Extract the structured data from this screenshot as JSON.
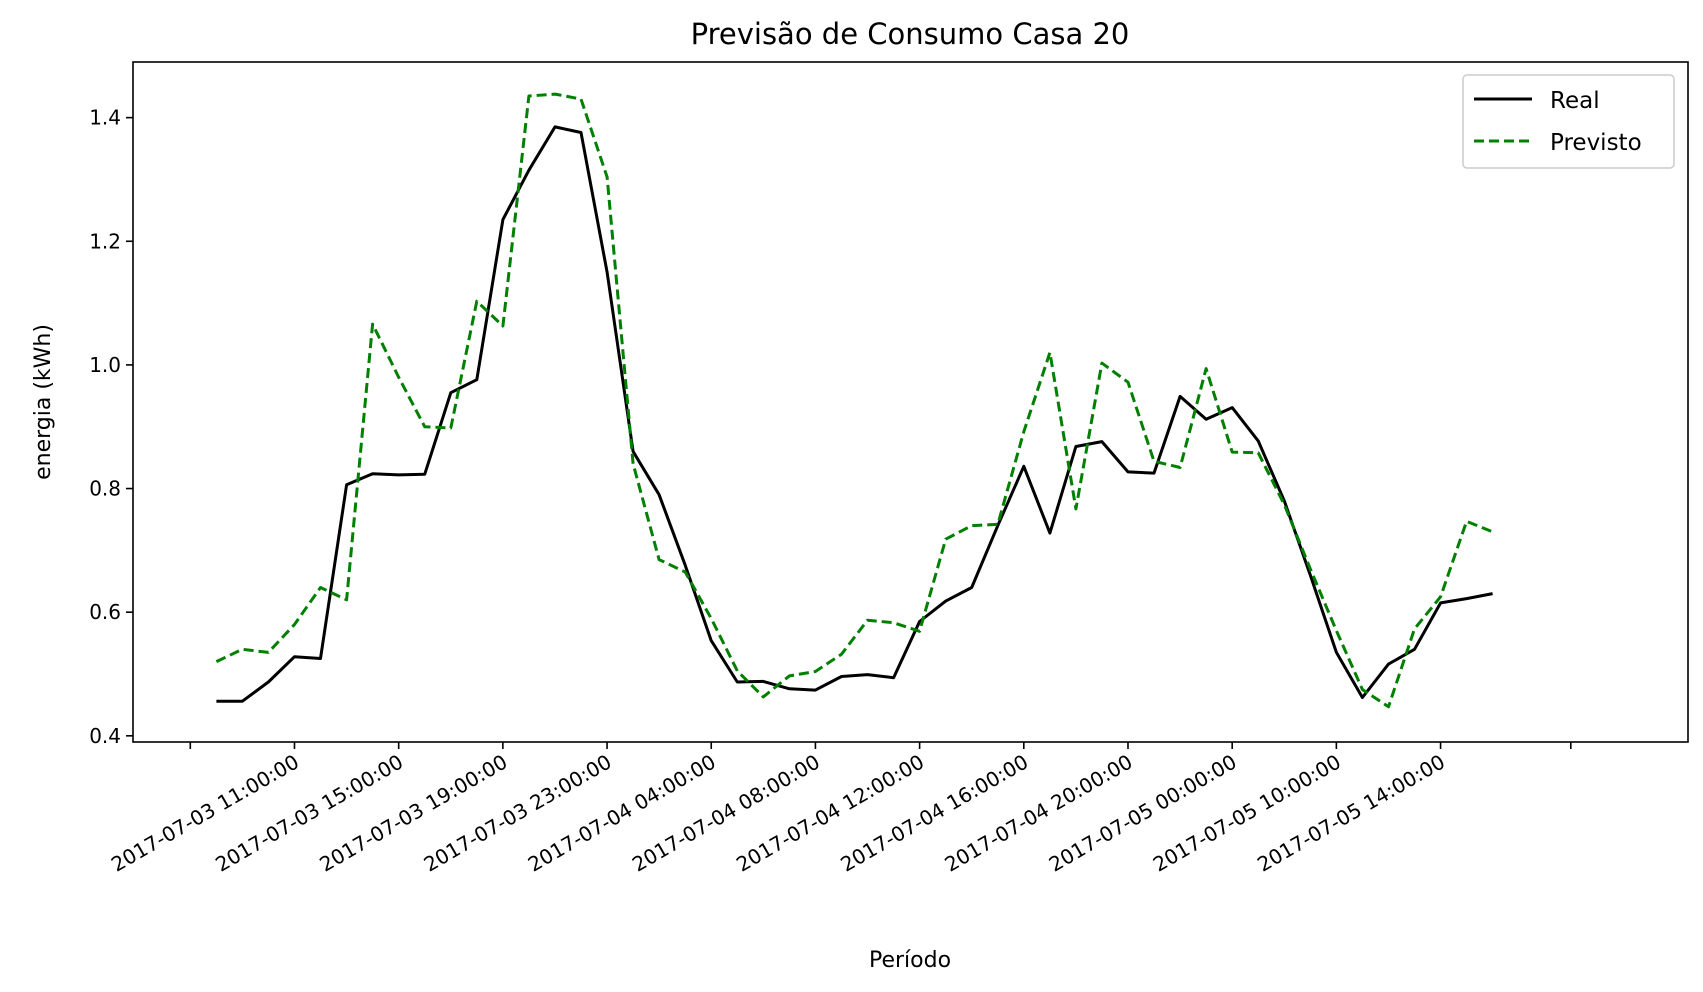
{
  "chart_data": {
    "type": "line",
    "title": "Previsão de Consumo Casa 20",
    "xlabel": "Período",
    "ylabel": "energia (kWh)",
    "ylim": [
      0.39,
      1.49
    ],
    "yticks": [
      0.4,
      0.6,
      0.8,
      1.0,
      1.2,
      1.4
    ],
    "ytick_labels": [
      "0.4",
      "0.6",
      "0.8",
      "1.0",
      "1.2",
      "1.4"
    ],
    "xlim": [
      -3.2,
      56.5
    ],
    "xtick_positions": [
      -1,
      3,
      7,
      11,
      15,
      19,
      23,
      27,
      31,
      35,
      39,
      43,
      47,
      52
    ],
    "xtick_labels": [
      "",
      "2017-07-03 11:00:00",
      "2017-07-03 15:00:00",
      "2017-07-03 19:00:00",
      "2017-07-03 23:00:00",
      "2017-07-04 04:00:00",
      "2017-07-04 08:00:00",
      "2017-07-04 12:00:00",
      "2017-07-04 16:00:00",
      "2017-07-04 20:00:00",
      "2017-07-05 00:00:00",
      "2017-07-05 10:00:00",
      "2017-07-05 14:00:00",
      ""
    ],
    "legend_position": "top-right",
    "grid": false,
    "series": [
      {
        "name": "Real",
        "color": "#000000",
        "style": "solid",
        "values": [
          0.456,
          0.456,
          0.487,
          0.528,
          0.525,
          0.806,
          0.824,
          0.822,
          0.823,
          0.955,
          0.976,
          1.235,
          1.315,
          1.385,
          1.376,
          1.15,
          0.86,
          0.79,
          0.676,
          0.554,
          0.487,
          0.488,
          0.476,
          0.474,
          0.496,
          0.499,
          0.494,
          0.585,
          0.618,
          0.64,
          0.74,
          0.836,
          0.728,
          0.868,
          0.876,
          0.827,
          0.825,
          0.949,
          0.912,
          0.931,
          0.877,
          0.78,
          0.66,
          0.535,
          0.462,
          0.516,
          0.54,
          0.615,
          0.622,
          0.63
        ]
      },
      {
        "name": "Previsto",
        "color": "#008000",
        "style": "dashed",
        "values": [
          0.52,
          0.54,
          0.535,
          0.58,
          0.64,
          0.62,
          1.066,
          0.98,
          0.9,
          0.898,
          1.103,
          1.063,
          1.435,
          1.438,
          1.43,
          1.304,
          0.84,
          0.685,
          0.665,
          0.59,
          0.505,
          0.463,
          0.497,
          0.504,
          0.532,
          0.587,
          0.583,
          0.569,
          0.718,
          0.74,
          0.742,
          0.892,
          1.02,
          0.767,
          1.003,
          0.972,
          0.844,
          0.834,
          0.994,
          0.859,
          0.858,
          0.774,
          0.67,
          0.57,
          0.475,
          0.447,
          0.573,
          0.625,
          0.747,
          0.73
        ]
      }
    ]
  }
}
